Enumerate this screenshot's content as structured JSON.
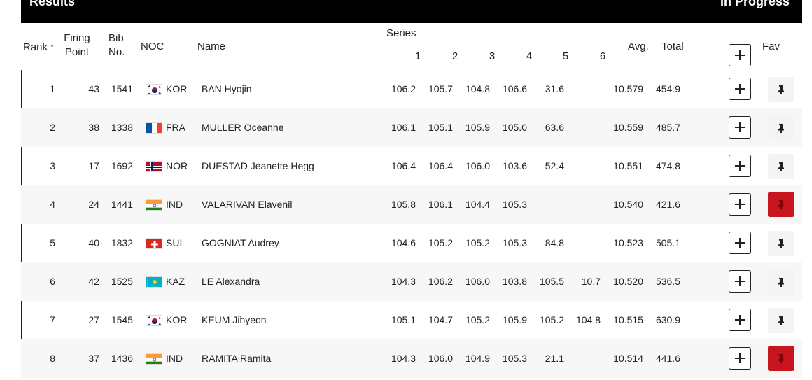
{
  "header": {
    "title": "Results",
    "status": "In Progress"
  },
  "columns": {
    "rank": "Rank",
    "rank_sort_icon": "arrow-up-icon",
    "firing_point_1": "Firing",
    "firing_point_2": "Point",
    "bib_1": "Bib",
    "bib_2": "No.",
    "noc": "NOC",
    "name": "Name",
    "series": "Series",
    "series_numbers": [
      "1",
      "2",
      "3",
      "4",
      "5",
      "6"
    ],
    "avg": "Avg.",
    "total": "Total",
    "fav": "Fav"
  },
  "colors": {
    "fav_active": "#c8141e",
    "header_bg": "#000000"
  },
  "rows": [
    {
      "rank": "1",
      "firing_point": "43",
      "bib": "1541",
      "noc": "KOR",
      "name": "BAN Hyojin",
      "series": [
        "106.2",
        "105.7",
        "104.8",
        "106.6",
        "31.6",
        ""
      ],
      "avg": "10.579",
      "total": "454.9",
      "fav": false,
      "flag": "kor"
    },
    {
      "rank": "2",
      "firing_point": "38",
      "bib": "1338",
      "noc": "FRA",
      "name": "MULLER Oceanne",
      "series": [
        "106.1",
        "105.1",
        "105.9",
        "105.0",
        "63.6",
        ""
      ],
      "avg": "10.559",
      "total": "485.7",
      "fav": false,
      "flag": "fra"
    },
    {
      "rank": "3",
      "firing_point": "17",
      "bib": "1692",
      "noc": "NOR",
      "name": "DUESTAD Jeanette Hegg",
      "series": [
        "106.4",
        "106.4",
        "106.0",
        "103.6",
        "52.4",
        ""
      ],
      "avg": "10.551",
      "total": "474.8",
      "fav": false,
      "flag": "nor"
    },
    {
      "rank": "4",
      "firing_point": "24",
      "bib": "1441",
      "noc": "IND",
      "name": "VALARIVAN Elavenil",
      "series": [
        "105.8",
        "106.1",
        "104.4",
        "105.3",
        "",
        ""
      ],
      "avg": "10.540",
      "total": "421.6",
      "fav": true,
      "flag": "ind"
    },
    {
      "rank": "5",
      "firing_point": "40",
      "bib": "1832",
      "noc": "SUI",
      "name": "GOGNIAT Audrey",
      "series": [
        "104.6",
        "105.2",
        "105.2",
        "105.3",
        "84.8",
        ""
      ],
      "avg": "10.523",
      "total": "505.1",
      "fav": false,
      "flag": "sui"
    },
    {
      "rank": "6",
      "firing_point": "42",
      "bib": "1525",
      "noc": "KAZ",
      "name": "LE Alexandra",
      "series": [
        "104.3",
        "106.2",
        "106.0",
        "103.8",
        "105.5",
        "10.7"
      ],
      "avg": "10.520",
      "total": "536.5",
      "fav": false,
      "flag": "kaz"
    },
    {
      "rank": "7",
      "firing_point": "27",
      "bib": "1545",
      "noc": "KOR",
      "name": "KEUM Jihyeon",
      "series": [
        "105.1",
        "104.7",
        "105.2",
        "105.9",
        "105.2",
        "104.8"
      ],
      "avg": "10.515",
      "total": "630.9",
      "fav": false,
      "flag": "kor"
    },
    {
      "rank": "8",
      "firing_point": "37",
      "bib": "1436",
      "noc": "IND",
      "name": "RAMITA Ramita",
      "series": [
        "104.3",
        "106.0",
        "104.9",
        "105.3",
        "21.1",
        ""
      ],
      "avg": "10.514",
      "total": "441.6",
      "fav": true,
      "flag": "ind"
    }
  ]
}
